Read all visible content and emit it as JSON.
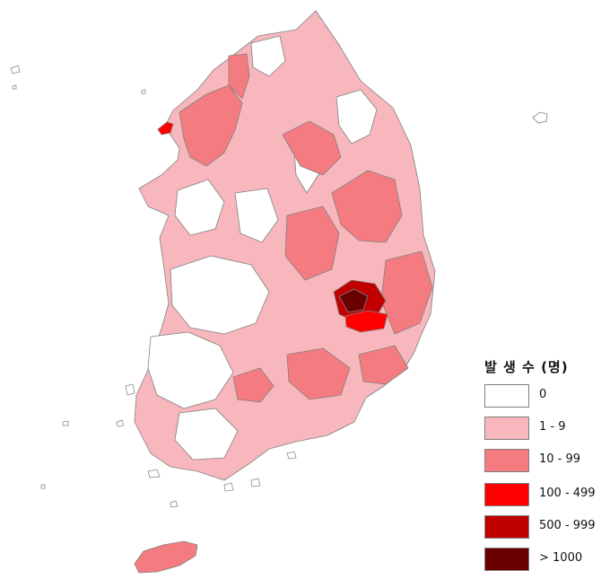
{
  "legend": {
    "title": "발 생 수 (명)",
    "items": [
      {
        "label": "0",
        "color": "#ffffff"
      },
      {
        "label": "1 - 9",
        "color": "#f7b7bc"
      },
      {
        "label": "10 - 99",
        "color": "#f47c80"
      },
      {
        "label": "100 - 499",
        "color": "#ff0000"
      },
      {
        "label": "500 - 999",
        "color": "#c00000"
      },
      {
        "label": "> 1000",
        "color": "#6b0000"
      }
    ]
  },
  "colors": {
    "boundary": "#808080",
    "zero": "#ffffff",
    "low": "#f7b7bc",
    "mid": "#f47c80",
    "high": "#ff0000",
    "very_high": "#c00000",
    "max": "#6b0000"
  }
}
